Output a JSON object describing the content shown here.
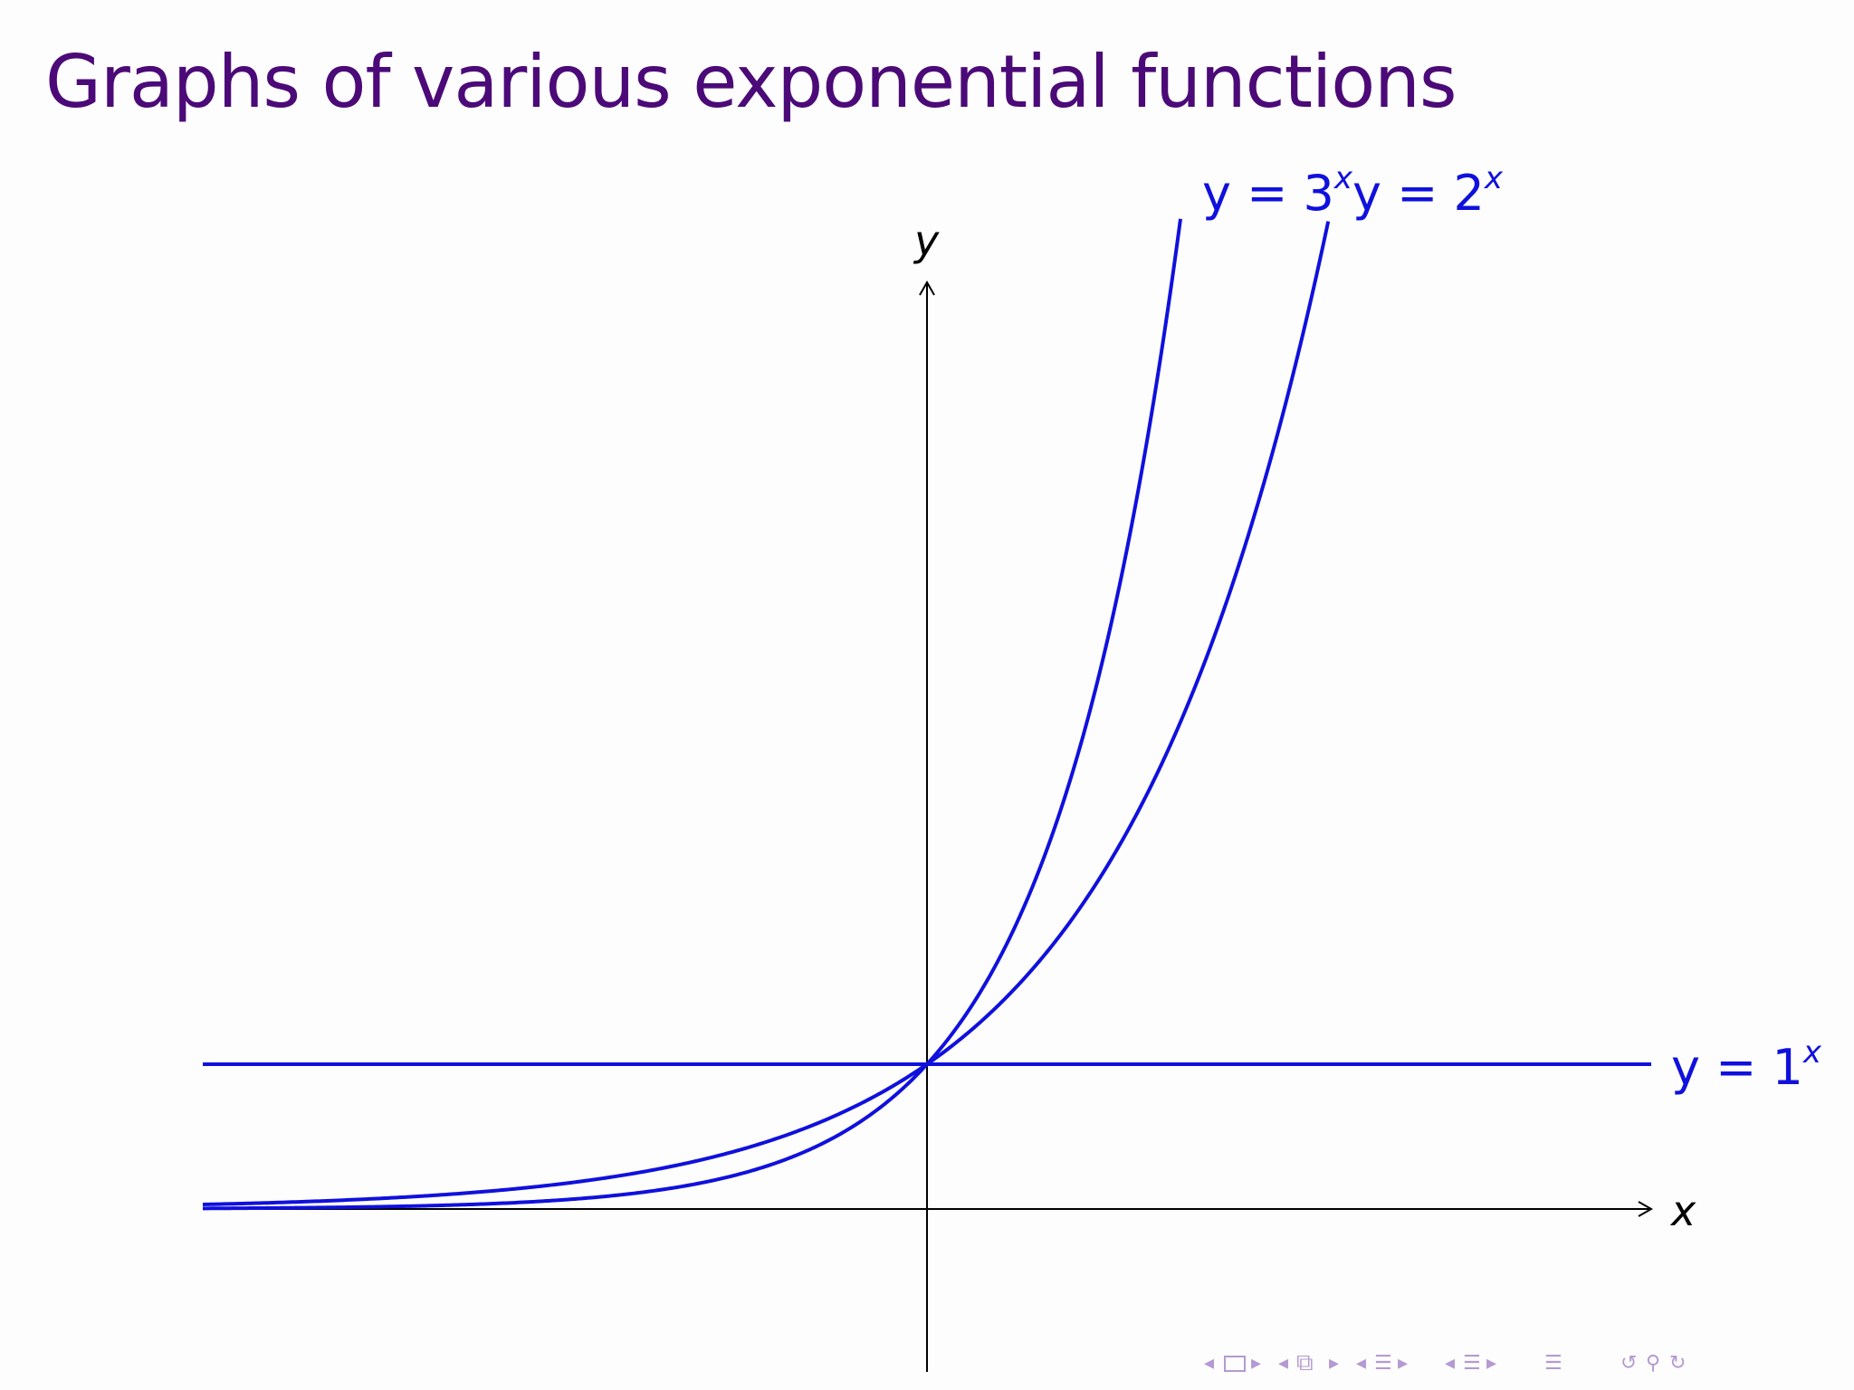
{
  "slide": {
    "title": "Graphs of various exponential functions"
  },
  "chart_data": {
    "type": "line",
    "title": "Graphs of various exponential functions",
    "xlabel": "x",
    "ylabel": "y",
    "xlim": [
      -5,
      5
    ],
    "ylim": [
      -1,
      6.4
    ],
    "grid": false,
    "legend": "none",
    "series": [
      {
        "name": "y = 3^x",
        "label_base": "y = 3",
        "label_exp": "x",
        "base": 3,
        "x": [
          -5,
          -4,
          -3,
          -2,
          -1,
          0,
          0.5,
          1,
          1.5,
          1.75
        ],
        "y": [
          0.004,
          0.012,
          0.037,
          0.111,
          0.333,
          1,
          1.732,
          3,
          5.196,
          6.84
        ]
      },
      {
        "name": "y = 2^x",
        "label_base": "y = 2",
        "label_exp": "x",
        "base": 2,
        "x": [
          -5,
          -4,
          -3,
          -2,
          -1,
          0,
          1,
          2,
          2.5,
          2.77
        ],
        "y": [
          0.031,
          0.063,
          0.125,
          0.25,
          0.5,
          1,
          2,
          4,
          5.657,
          6.82
        ]
      },
      {
        "name": "y = 1^x",
        "label_base": "y = 1",
        "label_exp": "x",
        "base": 1,
        "x": [
          -5,
          0,
          5
        ],
        "y": [
          1,
          1,
          1
        ]
      }
    ],
    "color": "#1010dd"
  },
  "nav_icons": [
    "arrow-left-icon",
    "frame-icon",
    "arrow-right-icon",
    "arrow-left-icon",
    "subsection-icon",
    "arrow-right-icon",
    "arrow-left-icon",
    "section-icon",
    "arrow-right-icon",
    "arrow-left-icon",
    "section-icon",
    "arrow-right-icon",
    "align-icon",
    "undo-icon",
    "search-icon",
    "redo-icon"
  ]
}
